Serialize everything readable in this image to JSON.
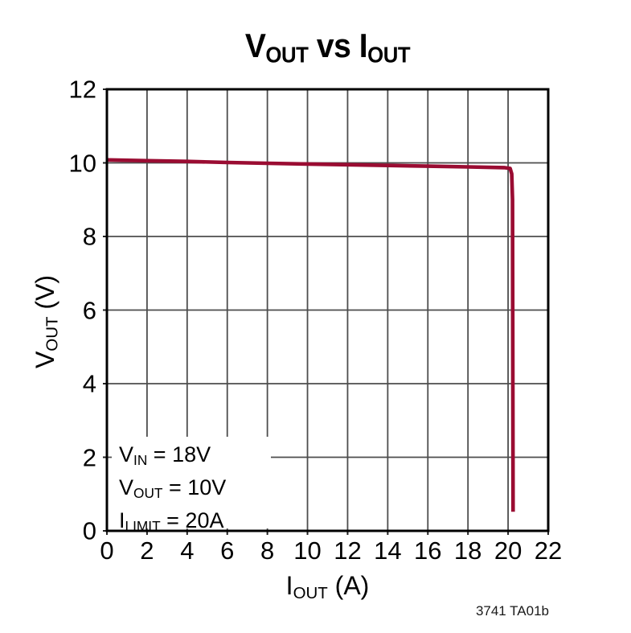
{
  "figure": {
    "footer_code": "3741 TA01b"
  },
  "chart_data": {
    "type": "line",
    "title": "VOUT vs IOUT",
    "title_segments": [
      [
        "V",
        false
      ],
      [
        "OUT",
        true
      ],
      [
        " vs ",
        false
      ],
      [
        "I",
        false
      ],
      [
        "OUT",
        true
      ]
    ],
    "xlabel": "IOUT (A)",
    "xlabel_segments": [
      [
        "I",
        false
      ],
      [
        "OUT",
        true
      ],
      [
        " (A)",
        false
      ]
    ],
    "ylabel": "VOUT (V)",
    "ylabel_segments": [
      [
        "V",
        false
      ],
      [
        "OUT",
        true
      ],
      [
        " (V)",
        false
      ]
    ],
    "xlim": [
      0,
      22
    ],
    "ylim": [
      0,
      12
    ],
    "x_ticks": [
      0,
      2,
      4,
      6,
      8,
      10,
      12,
      14,
      16,
      18,
      20,
      22
    ],
    "y_ticks": [
      0,
      2,
      4,
      6,
      8,
      10,
      12
    ],
    "grid": true,
    "legend": "none",
    "colors": {
      "curve": "#9a0c32",
      "grid": "#4d4d4d",
      "frame": "#000000",
      "background": "#ffffff"
    },
    "series": [
      {
        "name": "VOUT vs IOUT",
        "points": [
          [
            0,
            10.08
          ],
          [
            2,
            10.06
          ],
          [
            4,
            10.04
          ],
          [
            6,
            10.01
          ],
          [
            8,
            9.99
          ],
          [
            10,
            9.97
          ],
          [
            12,
            9.95
          ],
          [
            14,
            9.93
          ],
          [
            16,
            9.91
          ],
          [
            18,
            9.89
          ],
          [
            19.8,
            9.87
          ],
          [
            20.1,
            9.85
          ],
          [
            20.18,
            9.7
          ],
          [
            20.22,
            9.0
          ],
          [
            20.25,
            0.52
          ]
        ]
      }
    ],
    "annotation": {
      "plain": [
        "VIN = 18V",
        "VOUT = 10V",
        "ILIMIT = 20A"
      ],
      "lines": [
        [
          [
            "V",
            false
          ],
          [
            "IN",
            true
          ],
          [
            " = 18V",
            false
          ]
        ],
        [
          [
            "V",
            false
          ],
          [
            "OUT",
            true
          ],
          [
            " = 10V",
            false
          ]
        ],
        [
          [
            "I",
            false
          ],
          [
            "LIMIT",
            true
          ],
          [
            " = 20A",
            false
          ]
        ]
      ]
    }
  }
}
